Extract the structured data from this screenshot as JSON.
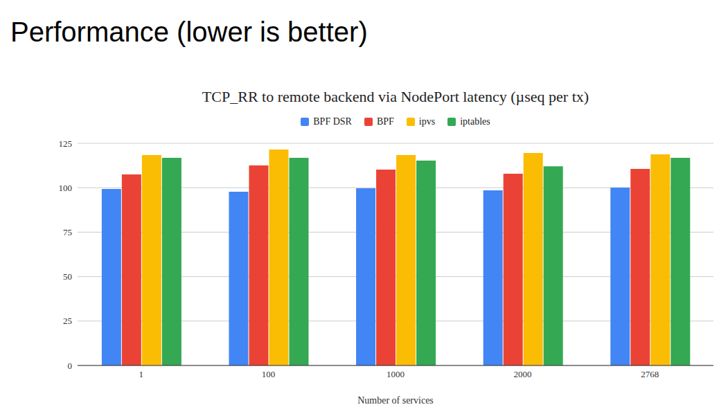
{
  "title": "Performance (lower is better)",
  "chart_data": {
    "type": "bar",
    "title": "TCP_RR to remote backend via NodePort latency (µseq per tx)",
    "x_label": "Number of services",
    "categories": [
      "1",
      "100",
      "1000",
      "2000",
      "2768"
    ],
    "series": [
      {
        "name": "BPF DSR",
        "color": "#4285f4",
        "values": [
          99.3,
          97.7,
          99.7,
          98.5,
          100.1
        ]
      },
      {
        "name": "BPF",
        "color": "#ea4335",
        "values": [
          107.5,
          112.5,
          110.2,
          107.9,
          110.6
        ]
      },
      {
        "name": "ipvs",
        "color": "#fbbc04",
        "values": [
          118.4,
          121.5,
          118.4,
          119.5,
          118.8
        ]
      },
      {
        "name": "iptables",
        "color": "#34a853",
        "values": [
          116.8,
          116.8,
          115.3,
          112.1,
          116.8
        ]
      }
    ],
    "ylim": [
      0,
      125
    ],
    "yticks": [
      0,
      25,
      50,
      75,
      100,
      125
    ],
    "grid": true,
    "legend": "top"
  }
}
